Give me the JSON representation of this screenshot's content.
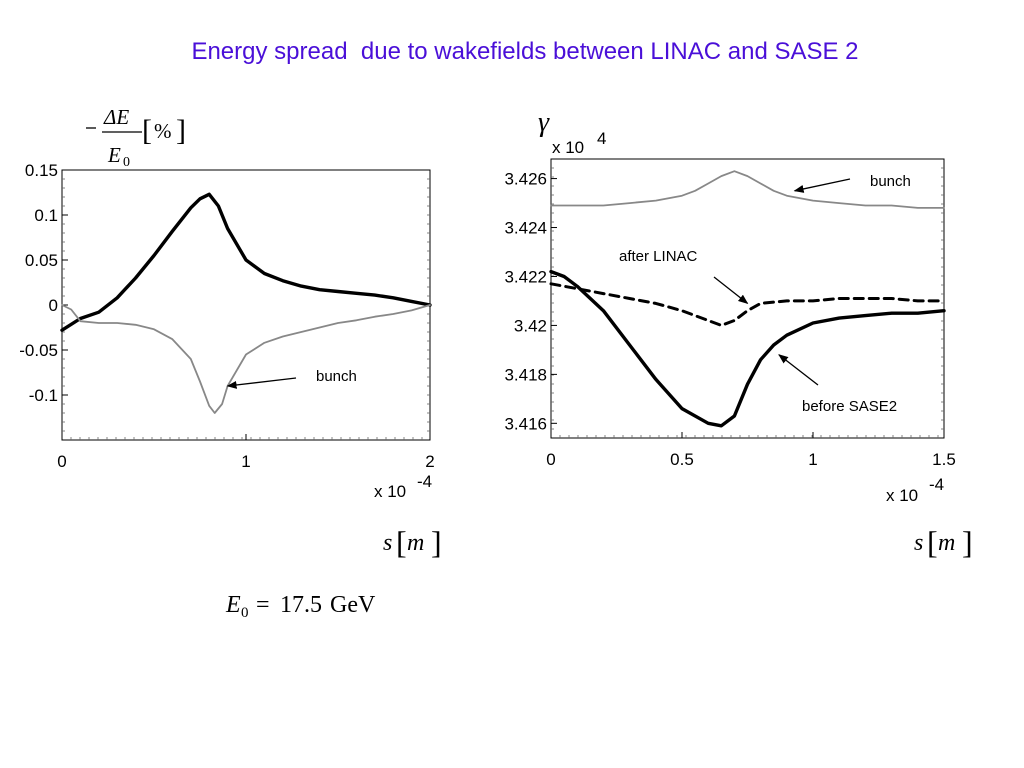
{
  "title": "Energy spread  due to wakefields between LINAC and SASE 2",
  "chart_data": [
    {
      "type": "line",
      "ylabel": "-ΔE/E0 [%]",
      "xlabel": "s [m]",
      "x_multiplier": "x 10-4",
      "x_multiplier_base": "x 10",
      "x_multiplier_exp": "-4",
      "xlim": [
        0,
        2
      ],
      "ylim": [
        -0.15,
        0.15
      ],
      "xticks": [
        0,
        1,
        2
      ],
      "xtick_labels": [
        "0",
        "1",
        "2"
      ],
      "yticks": [
        0.15,
        0.1,
        0.05,
        0,
        -0.05,
        -0.1
      ],
      "ytick_labels": [
        "0.15",
        "0.1",
        "0.05",
        "0",
        "-0.05",
        "-0.1"
      ],
      "grid": false,
      "series": [
        {
          "style": "solid-thick",
          "color": "#000000",
          "x": [
            0,
            0.1,
            0.2,
            0.3,
            0.4,
            0.5,
            0.6,
            0.7,
            0.75,
            0.8,
            0.85,
            0.9,
            1.0,
            1.1,
            1.2,
            1.3,
            1.4,
            1.5,
            1.6,
            1.7,
            1.8,
            1.9,
            2.0
          ],
          "y": [
            -0.028,
            -0.015,
            -0.008,
            0.008,
            0.03,
            0.055,
            0.082,
            0.108,
            0.118,
            0.123,
            0.11,
            0.085,
            0.05,
            0.035,
            0.027,
            0.021,
            0.017,
            0.015,
            0.013,
            0.011,
            0.008,
            0.004,
            0.0
          ]
        },
        {
          "name": "bunch",
          "style": "solid-thin",
          "color": "#888888",
          "x": [
            0,
            0.05,
            0.1,
            0.2,
            0.3,
            0.4,
            0.5,
            0.6,
            0.7,
            0.75,
            0.8,
            0.83,
            0.87,
            0.9,
            1.0,
            1.1,
            1.2,
            1.3,
            1.4,
            1.5,
            1.6,
            1.7,
            1.8,
            1.9,
            2.0
          ],
          "y": [
            0.0,
            -0.005,
            -0.018,
            -0.02,
            -0.02,
            -0.022,
            -0.027,
            -0.038,
            -0.06,
            -0.085,
            -0.112,
            -0.12,
            -0.11,
            -0.09,
            -0.055,
            -0.042,
            -0.035,
            -0.03,
            -0.025,
            -0.02,
            -0.017,
            -0.013,
            -0.01,
            -0.006,
            0.0
          ]
        }
      ],
      "annotations": [
        {
          "text": "bunch",
          "points_to_x": 0.9,
          "points_to_y": -0.09
        }
      ],
      "footnote": "E0 = 17.5 GeV",
      "footnote_unit": "GeV",
      "footnote_value": "17.5"
    },
    {
      "type": "line",
      "ylabel": "γ",
      "y_multiplier": "x 10^4",
      "y_multiplier_base": "x 10",
      "y_multiplier_exp": "4",
      "xlabel": "s [m]",
      "x_multiplier": "x 10-4",
      "x_multiplier_base": "x 10",
      "x_multiplier_exp": "-4",
      "xlim": [
        0,
        1.5
      ],
      "ylim": [
        3.4154,
        3.4268
      ],
      "xticks": [
        0,
        0.5,
        1,
        1.5
      ],
      "xtick_labels": [
        "0",
        "0.5",
        "1",
        "1.5"
      ],
      "yticks": [
        3.426,
        3.424,
        3.422,
        3.42,
        3.418,
        3.416
      ],
      "ytick_labels": [
        "3.426",
        "3.424",
        "3.422",
        "3.42",
        "3.418",
        "3.416"
      ],
      "grid": false,
      "series": [
        {
          "name": "bunch",
          "style": "solid-thin",
          "color": "#888888",
          "x": [
            0,
            0.1,
            0.2,
            0.3,
            0.4,
            0.5,
            0.55,
            0.6,
            0.65,
            0.7,
            0.75,
            0.8,
            0.85,
            0.9,
            1.0,
            1.1,
            1.2,
            1.3,
            1.4,
            1.5
          ],
          "y": [
            3.4249,
            3.4249,
            3.4249,
            3.425,
            3.4251,
            3.4253,
            3.4255,
            3.4258,
            3.4261,
            3.4263,
            3.4261,
            3.4258,
            3.4255,
            3.4253,
            3.4251,
            3.425,
            3.4249,
            3.4249,
            3.4248,
            3.4248
          ]
        },
        {
          "name": "after LINAC",
          "style": "dashed-thick",
          "color": "#000000",
          "x": [
            0,
            0.1,
            0.2,
            0.3,
            0.4,
            0.5,
            0.6,
            0.65,
            0.7,
            0.75,
            0.8,
            0.9,
            1.0,
            1.1,
            1.2,
            1.3,
            1.4,
            1.5
          ],
          "y": [
            3.4217,
            3.4215,
            3.4213,
            3.4211,
            3.4209,
            3.4206,
            3.4202,
            3.42,
            3.4202,
            3.4206,
            3.4209,
            3.421,
            3.421,
            3.4211,
            3.4211,
            3.4211,
            3.421,
            3.421
          ]
        },
        {
          "name": "before SASE2",
          "style": "solid-thick",
          "color": "#000000",
          "x": [
            0,
            0.05,
            0.1,
            0.2,
            0.3,
            0.4,
            0.5,
            0.6,
            0.65,
            0.7,
            0.75,
            0.8,
            0.85,
            0.9,
            1.0,
            1.1,
            1.2,
            1.3,
            1.4,
            1.5
          ],
          "y": [
            3.4222,
            3.422,
            3.4216,
            3.4206,
            3.4192,
            3.4178,
            3.4166,
            3.416,
            3.4159,
            3.4163,
            3.4176,
            3.4186,
            3.4192,
            3.4196,
            3.4201,
            3.4203,
            3.4204,
            3.4205,
            3.4205,
            3.4206
          ]
        }
      ],
      "annotations": [
        {
          "text": "bunch",
          "points_to_x": 0.93,
          "points_to_y": 3.4255
        },
        {
          "text": "after LINAC",
          "points_to_x": 0.75,
          "points_to_y": 3.4209
        },
        {
          "text": "before SASE2",
          "points_to_x": 0.87,
          "points_to_y": 3.4188
        }
      ]
    }
  ]
}
